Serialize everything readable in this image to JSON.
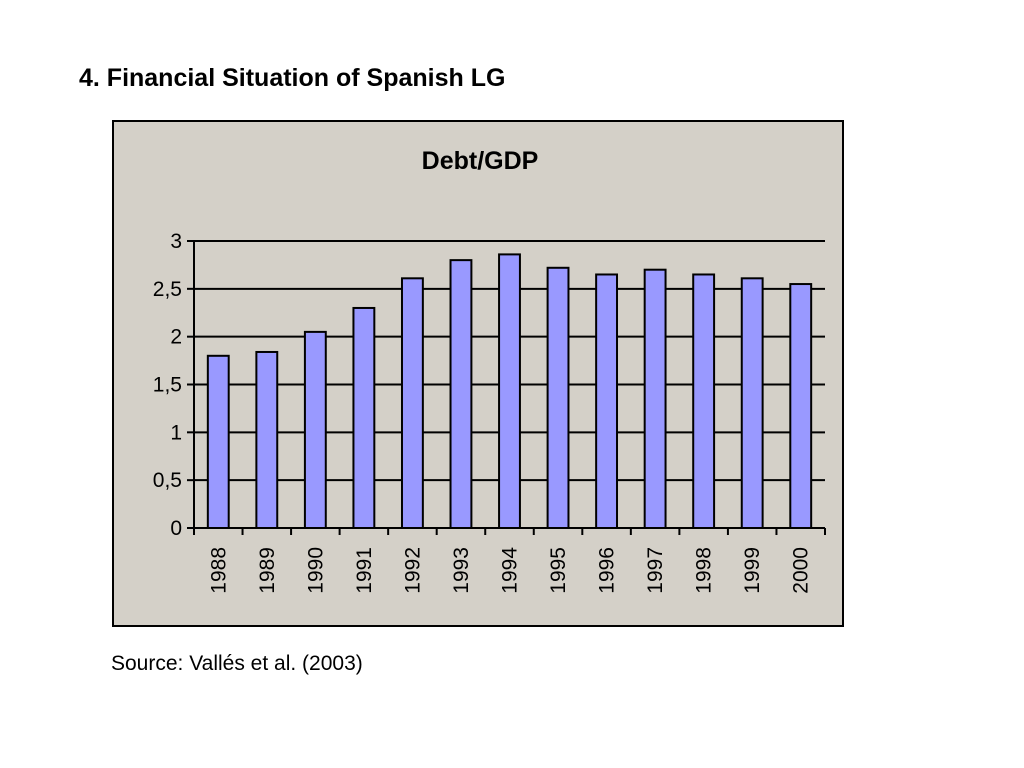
{
  "slide": {
    "title": "4. Financial Situation of Spanish LG",
    "source": "Source: Vallés et al. (2003)"
  },
  "colors": {
    "bar_fill": "#9999ff",
    "bar_stroke": "#000000",
    "plot_background": "#d4d0c8",
    "gridline": "#000000"
  },
  "chart_data": {
    "type": "bar",
    "title": "Debt/GDP",
    "xlabel": "",
    "ylabel": "",
    "categories": [
      "1988",
      "1989",
      "1990",
      "1991",
      "1992",
      "1993",
      "1994",
      "1995",
      "1996",
      "1997",
      "1998",
      "1999",
      "2000"
    ],
    "values": [
      1.8,
      1.84,
      2.05,
      2.3,
      2.61,
      2.8,
      2.86,
      2.72,
      2.65,
      2.7,
      2.65,
      2.61,
      2.55
    ],
    "ylim": [
      0,
      3
    ],
    "yticks": [
      0,
      0.5,
      1,
      1.5,
      2,
      2.5,
      3
    ],
    "ytick_labels": [
      "0",
      "0,5",
      "1",
      "1,5",
      "2",
      "2,5",
      "3"
    ],
    "xtick_rotation": "vertical",
    "grid": true,
    "legend": "none"
  }
}
